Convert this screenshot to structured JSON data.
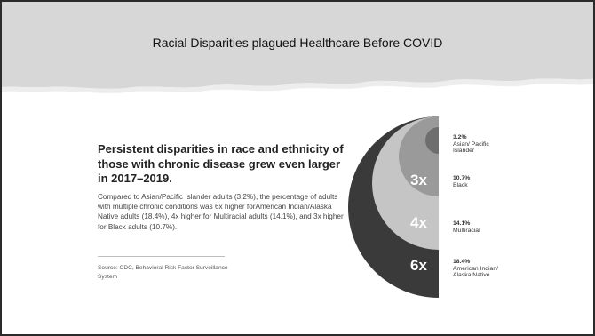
{
  "slide": {
    "title": "Racial Disparities plagued Healthcare Before COVID"
  },
  "infographic": {
    "heading": "Persistent disparities in race and ethnicity of those with chronic disease grew even larger in 2017–2019.",
    "body": "Compared to Asian/Pacific Islander adults (3.2%), the percentage of adults with multiple chronic conditions was 6x higher forAmerican Indian/Alaska Native adults (18.4%), 4x higher for Multiracial adults (14.1%), and 3x higher for Black adults (10.7%).",
    "source": "Source: CDC, Behavioral Risk Factor Surveillance System"
  },
  "chart_data": {
    "type": "other",
    "groups": [
      {
        "label": "Asian/ Pacific Islander",
        "percent_label": "3.2%",
        "value": 3.2,
        "multiplier": "",
        "color": "#6e6e6e"
      },
      {
        "label": "Black",
        "percent_label": "10.7%",
        "value": 10.7,
        "multiplier": "3x",
        "color": "#9a9a9a"
      },
      {
        "label": "Multiracial",
        "percent_label": "14.1%",
        "value": 14.1,
        "multiplier": "4x",
        "color": "#c5c5c5"
      },
      {
        "label": "American Indian/ Alaska Native",
        "percent_label": "18.4%",
        "value": 18.4,
        "multiplier": "6x",
        "color": "#3a3a3a"
      }
    ]
  }
}
